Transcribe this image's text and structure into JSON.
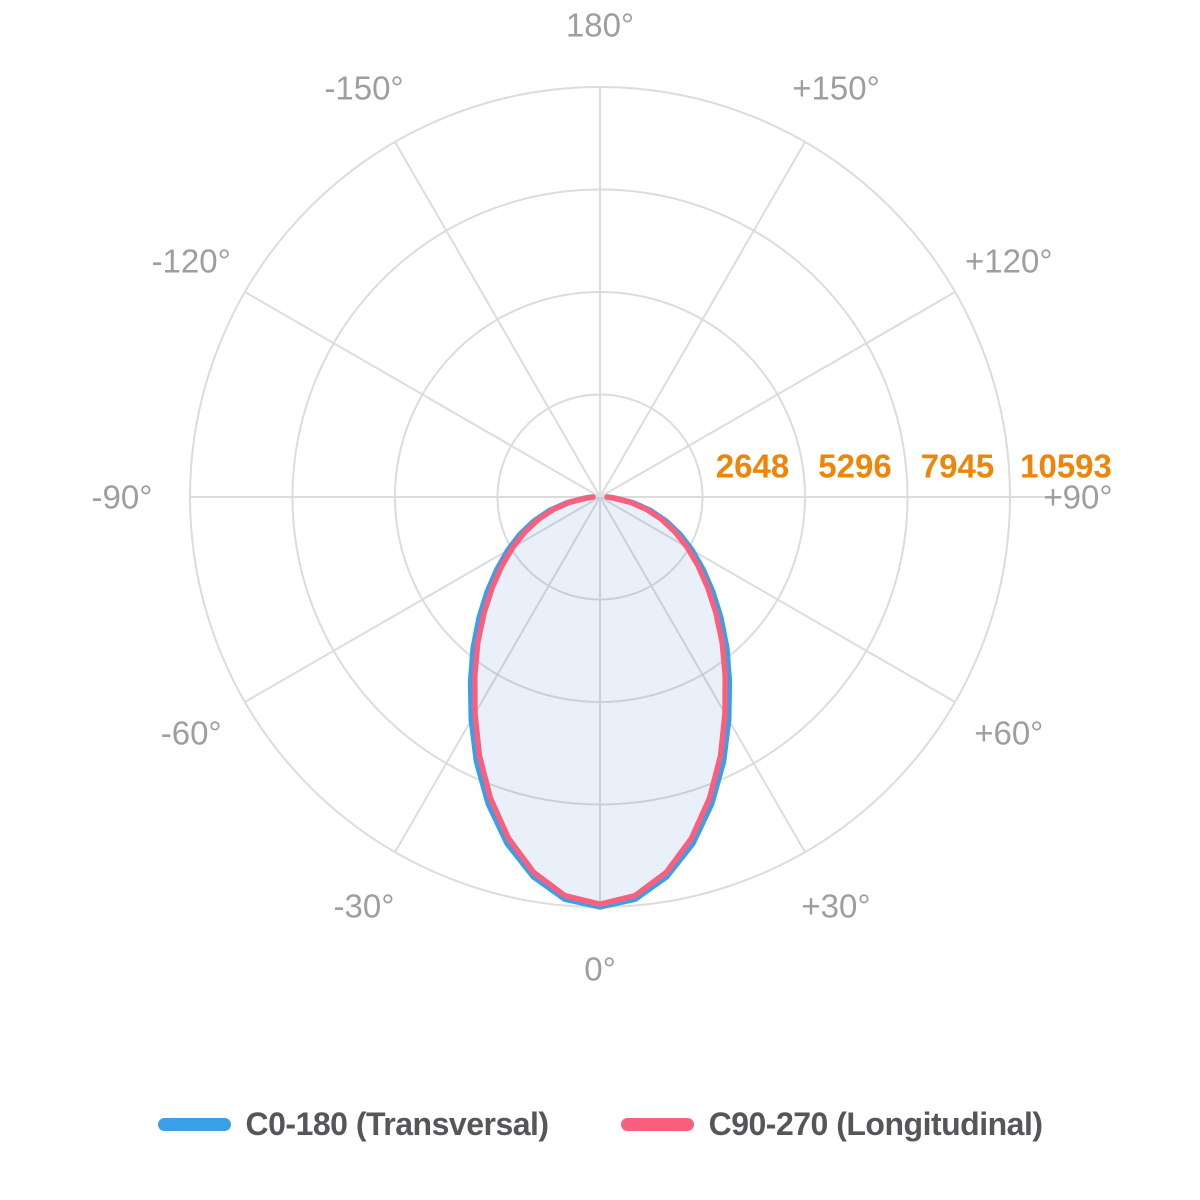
{
  "chart_data": {
    "type": "polar",
    "subtype": "photometric_intensity_distribution",
    "angle_unit": "degrees",
    "angle_zero_position": "bottom",
    "grid": {
      "rings": 4,
      "spoke_step_deg": 30,
      "grid_on": true
    },
    "max_value": 10593,
    "ring_values": [
      2648,
      5296,
      7945,
      10593
    ],
    "angle_tick_labels": [
      {
        "angle": 180,
        "label": "180°"
      },
      {
        "angle": -150,
        "label": "-150°"
      },
      {
        "angle": 150,
        "label": "+150°"
      },
      {
        "angle": -120,
        "label": "-120°"
      },
      {
        "angle": 120,
        "label": "+120°"
      },
      {
        "angle": -90,
        "label": "-90°"
      },
      {
        "angle": 90,
        "label": "+90°"
      },
      {
        "angle": -60,
        "label": "-60°"
      },
      {
        "angle": 60,
        "label": "+60°"
      },
      {
        "angle": -30,
        "label": "-30°"
      },
      {
        "angle": 30,
        "label": "+30°"
      },
      {
        "angle": 0,
        "label": "0°"
      }
    ],
    "gamma_angles_deg": [
      0,
      5,
      10,
      15,
      20,
      25,
      30,
      35,
      40,
      45,
      50,
      55,
      60,
      65,
      70,
      75,
      80,
      85,
      90
    ],
    "series": [
      {
        "name": "C0-180 (Transversal)",
        "color": "#3b9fe8",
        "symmetric_mirror": true,
        "values": [
          10593,
          10430,
          9960,
          9270,
          8440,
          7550,
          6650,
          5830,
          5100,
          4420,
          3800,
          3250,
          2750,
          2280,
          1820,
          1350,
          880,
          420,
          200
        ]
      },
      {
        "name": "C90-270 (Longitudinal)",
        "color": "#f8607e",
        "symmetric_mirror": true,
        "values": [
          10520,
          10340,
          9850,
          9130,
          8280,
          7370,
          6460,
          5640,
          4910,
          4240,
          3630,
          3090,
          2600,
          2140,
          1700,
          1250,
          810,
          380,
          180
        ]
      }
    ],
    "legend_position": "bottom"
  },
  "colors": {
    "background": "#ffffff",
    "grid": "#dcdcdc",
    "angle_label": "#9e9e9e",
    "ring_value_label": "#ee8508",
    "beam_fill": "rgba(45,110,205,0.10)",
    "legend_text": "#55565a"
  }
}
